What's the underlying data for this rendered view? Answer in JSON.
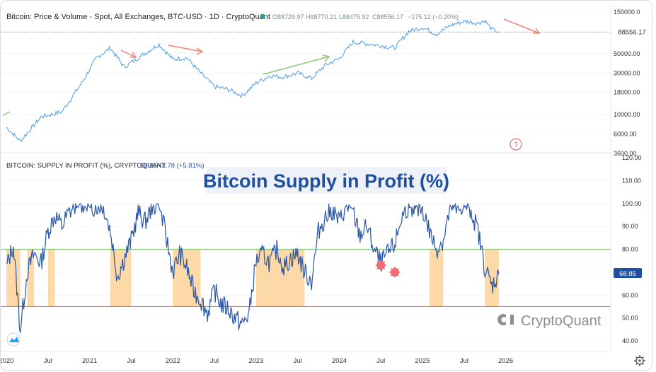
{
  "chart_data": [
    {
      "type": "line",
      "panel": "price",
      "title": "Bitcoin: Price & Volume - Spot, All Exchanges, BTC-USD · 1D · CryptoQuant",
      "ohlc": {
        "open": "O88729.97",
        "high": "H88770.21",
        "low": "L88475.92",
        "close": "C88556.17",
        "change": "−175.12 (−0.20%)"
      },
      "last_value": "88556.17",
      "y_scale": "log",
      "ylim": [
        3600,
        150000
      ],
      "y_ticks": [
        "150000.0",
        "50000.00",
        "30000.00",
        "18000.00",
        "10000.00",
        "6000.00",
        "3600.00"
      ],
      "series": [
        {
          "x": [
            "2020-01",
            "2020-03",
            "2020-06",
            "2020-09",
            "2020-12",
            "2021-02",
            "2021-04",
            "2021-06",
            "2021-08",
            "2021-11",
            "2022-01",
            "2022-03",
            "2022-05",
            "2022-07",
            "2022-09",
            "2022-11",
            "2023-01",
            "2023-03",
            "2023-05",
            "2023-07",
            "2023-09",
            "2023-11",
            "2024-01",
            "2024-03",
            "2024-05",
            "2024-07",
            "2024-09",
            "2024-11",
            "2025-01",
            "2025-03",
            "2025-05",
            "2025-07",
            "2025-09",
            "2025-10",
            "2025-11",
            "2025-12"
          ],
          "values": [
            7200,
            5000,
            9400,
            10800,
            24000,
            45000,
            58000,
            35000,
            45000,
            64000,
            43000,
            45000,
            30000,
            21000,
            19500,
            16500,
            23000,
            28000,
            27000,
            30000,
            26000,
            37000,
            44000,
            68000,
            65000,
            62000,
            58000,
            90000,
            100000,
            84000,
            105000,
            118000,
            112000,
            120000,
            95000,
            88556
          ]
        }
      ],
      "annotations": [
        "arrow-down-1",
        "arrow-down-2",
        "arrow-up",
        "arrow-down-3"
      ]
    },
    {
      "type": "line",
      "panel": "supply",
      "header": "BITCOIN: SUPPLY IN PROFIT (%), CRYPTOQUANT",
      "value_label": "68.85",
      "change_label": "+3.78 (+5.81%)",
      "overlay_title": "Bitcoin Supply in Profit (%)",
      "last_value": "68.85",
      "ylim": [
        40,
        120
      ],
      "y_ticks": [
        "120.00",
        "110.00",
        "100.00",
        "90.00",
        "80.00",
        "70.00",
        "60.00",
        "50.00",
        "40.00"
      ],
      "reference_lines": [
        {
          "value": 80,
          "color": "#8cc97a"
        },
        {
          "value": 55,
          "color": "#e57373"
        }
      ],
      "shaded_periods": [
        [
          "2020-01",
          "2020-03"
        ],
        [
          "2020-04",
          "2020-05"
        ],
        [
          "2020-07",
          "2020-08"
        ],
        [
          "2021-04",
          "2021-07"
        ],
        [
          "2022-01",
          "2022-05"
        ],
        [
          "2023-01",
          "2023-08"
        ],
        [
          "2025-02",
          "2025-04"
        ],
        [
          "2025-10",
          "2025-12"
        ]
      ],
      "x_ticks": [
        "2020",
        "Jul",
        "2021",
        "Jul",
        "2022",
        "Jul",
        "2023",
        "Jul",
        "2024",
        "Jul",
        "2025",
        "Jul",
        "2026"
      ],
      "series": [
        {
          "x": [
            "2020-01",
            "2020-02",
            "2020-03",
            "2020-04",
            "2020-05",
            "2020-06",
            "2020-07",
            "2020-08",
            "2020-09",
            "2020-10",
            "2020-11",
            "2020-12",
            "2021-01",
            "2021-02",
            "2021-03",
            "2021-04",
            "2021-05",
            "2021-06",
            "2021-07",
            "2021-08",
            "2021-09",
            "2021-10",
            "2021-11",
            "2021-12",
            "2022-01",
            "2022-02",
            "2022-03",
            "2022-04",
            "2022-05",
            "2022-06",
            "2022-07",
            "2022-08",
            "2022-09",
            "2022-10",
            "2022-11",
            "2022-12",
            "2023-01",
            "2023-02",
            "2023-03",
            "2023-04",
            "2023-05",
            "2023-06",
            "2023-07",
            "2023-08",
            "2023-09",
            "2023-10",
            "2023-11",
            "2023-12",
            "2024-01",
            "2024-02",
            "2024-03",
            "2024-04",
            "2024-05",
            "2024-06",
            "2024-07",
            "2024-08",
            "2024-09",
            "2024-10",
            "2024-11",
            "2024-12",
            "2025-01",
            "2025-02",
            "2025-03",
            "2025-04",
            "2025-05",
            "2025-06",
            "2025-07",
            "2025-08",
            "2025-09",
            "2025-10",
            "2025-11",
            "2025-12"
          ],
          "values": [
            72,
            82,
            45,
            70,
            78,
            74,
            88,
            95,
            90,
            96,
            99,
            100,
            98,
            99,
            99,
            88,
            68,
            76,
            84,
            96,
            92,
            98,
            100,
            86,
            70,
            78,
            72,
            62,
            58,
            52,
            62,
            56,
            54,
            50,
            47,
            52,
            75,
            78,
            74,
            80,
            72,
            76,
            78,
            70,
            66,
            88,
            94,
            97,
            92,
            99,
            96,
            86,
            90,
            80,
            74,
            78,
            82,
            94,
            99,
            96,
            98,
            88,
            80,
            84,
            98,
            96,
            100,
            97,
            88,
            72,
            64,
            69
          ]
        }
      ],
      "markers": [
        {
          "x": "2024-07",
          "y": 73
        },
        {
          "x": "2024-09",
          "y": 70
        }
      ]
    }
  ],
  "watermark": "CryptoQuant",
  "help_glyph": "?",
  "settings_icon": "gear-icon",
  "logo_icon": "tradingview-logo-icon",
  "colors": {
    "line": "#2a56a6",
    "price_line": "#5aa4e6",
    "shade": "#fcd9a6",
    "green": "#8cc97a",
    "red": "#e57373",
    "marker": "#ee6e73"
  }
}
